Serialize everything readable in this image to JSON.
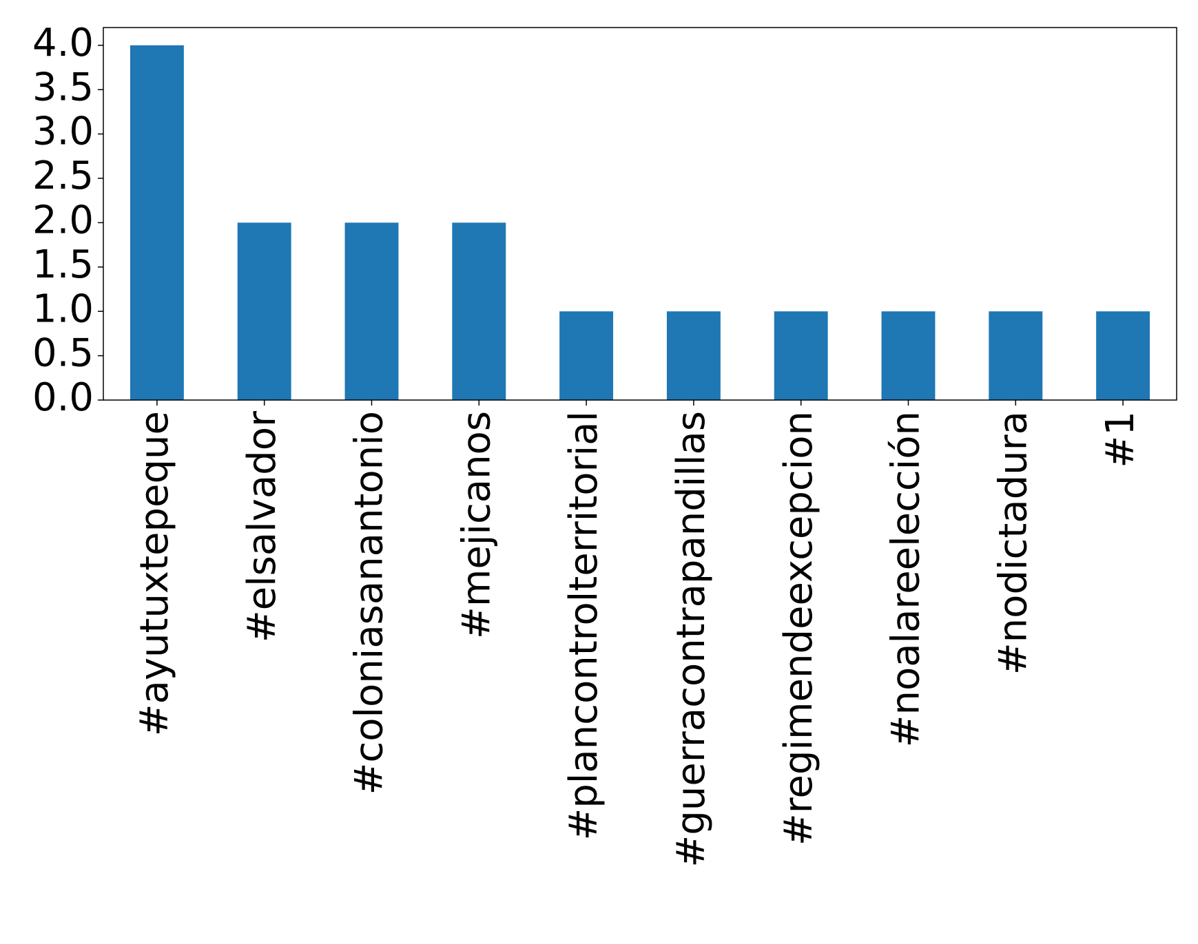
{
  "chart_data": {
    "type": "bar",
    "categories": [
      "#ayutuxtepeque",
      "#elsalvador",
      "#coloniasanantonio",
      "#mejicanos",
      "#plancontrolterritorial",
      "#guerracontrapandillas",
      "#regimendeexcepcion",
      "#noalareelección",
      "#nodictadura",
      "#1"
    ],
    "values": [
      4,
      2,
      2,
      2,
      1,
      1,
      1,
      1,
      1,
      1
    ],
    "color": "#1f77b4",
    "ylim": [
      0,
      4.2
    ],
    "yticks": [
      {
        "value": 0,
        "label": "0.0"
      },
      {
        "value": 0.5,
        "label": "0.5"
      },
      {
        "value": 1,
        "label": "1.0"
      },
      {
        "value": 1.5,
        "label": "1.5"
      },
      {
        "value": 2,
        "label": "2.0"
      },
      {
        "value": 2.5,
        "label": "2.5"
      },
      {
        "value": 3,
        "label": "3.0"
      },
      {
        "value": 3.5,
        "label": "3.5"
      },
      {
        "value": 4,
        "label": "4.0"
      }
    ],
    "grid": false
  }
}
